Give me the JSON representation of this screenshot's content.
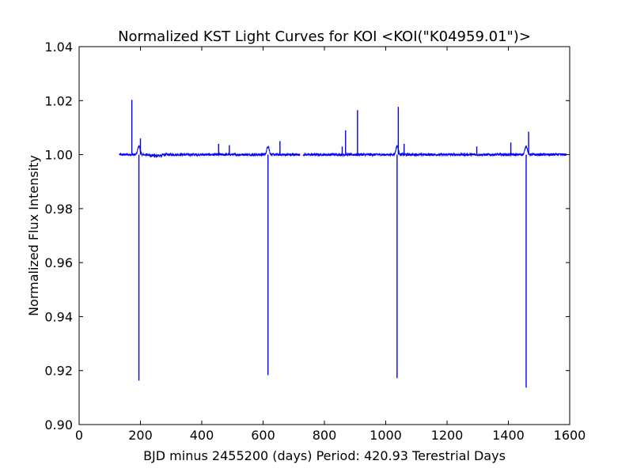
{
  "chart_data": {
    "type": "line",
    "title": "Normalized KST Light Curves for KOI <KOI(\"K04959.01\")>",
    "xlabel": "BJD minus 2455200 (days)   Period: 420.93 Terestrial Days",
    "ylabel": "Normalized Flux Intensity",
    "xlim": [
      0,
      1600
    ],
    "ylim": [
      0.9,
      1.04
    ],
    "xticks": [
      0,
      200,
      400,
      600,
      800,
      1000,
      1200,
      1400,
      1600
    ],
    "yticks": [
      0.9,
      0.92,
      0.94,
      0.96,
      0.98,
      1.0,
      1.02,
      1.04
    ],
    "xtick_labels": [
      "0",
      "200",
      "400",
      "600",
      "800",
      "1000",
      "1200",
      "1400",
      "1600"
    ],
    "ytick_labels": [
      "0.90",
      "0.92",
      "0.94",
      "0.96",
      "0.98",
      "1.00",
      "1.02",
      "1.04"
    ],
    "grid": false,
    "series_color": "#0000ff",
    "baseline": 1.0,
    "segments": [
      [
        131,
        720
      ],
      [
        730,
        1590
      ]
    ],
    "transits": [
      {
        "x": 195,
        "min": 0.9163
      },
      {
        "x": 616,
        "min": 0.9183
      },
      {
        "x": 1037,
        "min": 0.9172
      },
      {
        "x": 1458,
        "min": 0.9137
      }
    ],
    "spikes": [
      {
        "x": 172,
        "y": 1.0203
      },
      {
        "x": 200,
        "y": 1.006
      },
      {
        "x": 455,
        "y": 1.004
      },
      {
        "x": 490,
        "y": 1.0035
      },
      {
        "x": 655,
        "y": 1.005
      },
      {
        "x": 858,
        "y": 1.003
      },
      {
        "x": 869,
        "y": 1.009
      },
      {
        "x": 908,
        "y": 1.0165
      },
      {
        "x": 1041,
        "y": 1.0177
      },
      {
        "x": 1060,
        "y": 1.004
      },
      {
        "x": 1297,
        "y": 1.003
      },
      {
        "x": 1408,
        "y": 1.0045
      },
      {
        "x": 1466,
        "y": 1.0085
      }
    ]
  }
}
